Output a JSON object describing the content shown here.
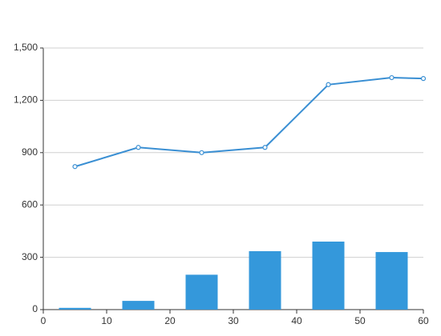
{
  "chart_data": {
    "type": "combo",
    "xlim": [
      0,
      60
    ],
    "xticks": [
      0,
      10,
      20,
      30,
      40,
      50,
      60
    ],
    "ylim": [
      0,
      1500
    ],
    "yticks": [
      0,
      300,
      600,
      900,
      {
        "value": 1200,
        "label": "1,200"
      },
      {
        "value": 1500,
        "label": "1,500"
      }
    ],
    "grid": true,
    "series": [
      {
        "type": "bar",
        "color": "#3498db",
        "x": [
          5,
          15,
          25,
          35,
          45,
          55
        ],
        "values": [
          10,
          50,
          200,
          335,
          390,
          330
        ]
      },
      {
        "type": "line",
        "color": "#3a8fd3",
        "x": [
          5,
          15,
          25,
          35,
          45,
          55,
          60
        ],
        "values": [
          820,
          930,
          900,
          930,
          1290,
          1330,
          1325
        ]
      }
    ]
  }
}
